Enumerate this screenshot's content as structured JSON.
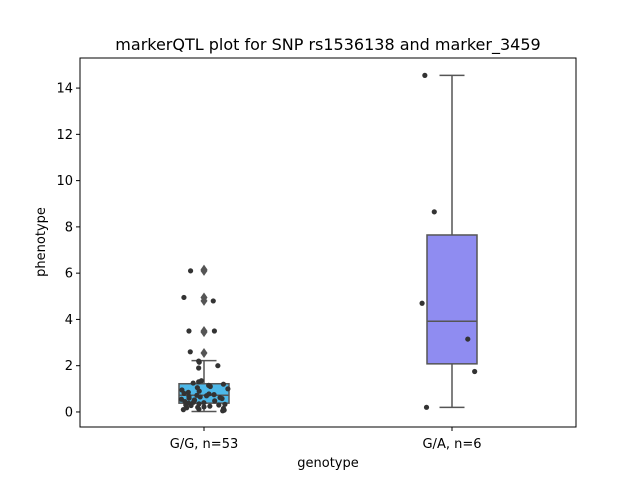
{
  "chart_data": {
    "type": "box",
    "title": "markerQTL plot for SNP rs1536138 and marker_3459",
    "xlabel": "genotype",
    "ylabel": "phenotype",
    "ylim": [
      -0.65,
      15.3
    ],
    "yticks": [
      0,
      2,
      4,
      6,
      8,
      10,
      12,
      14
    ],
    "categories": [
      "G/G, n=53",
      "G/A, n=6"
    ],
    "boxes": [
      {
        "category": "G/G, n=53",
        "color": "#4db8e8",
        "q1": 0.38,
        "median": 0.72,
        "q3": 1.22,
        "whisker_low": 0.02,
        "whisker_high": 2.22,
        "outliers": [
          2.55,
          3.5,
          3.45,
          4.8,
          4.95,
          6.1,
          6.15
        ],
        "points": [
          0.05,
          0.08,
          0.1,
          0.12,
          0.15,
          0.18,
          0.2,
          0.22,
          0.25,
          0.28,
          0.3,
          0.33,
          0.35,
          0.38,
          0.4,
          0.42,
          0.45,
          0.48,
          0.5,
          0.52,
          0.55,
          0.58,
          0.6,
          0.62,
          0.65,
          0.68,
          0.7,
          0.72,
          0.75,
          0.78,
          0.8,
          0.85,
          0.9,
          0.95,
          1.0,
          1.05,
          1.1,
          1.15,
          1.2,
          1.25,
          1.3,
          1.35,
          1.9,
          2.0,
          2.15,
          2.2,
          2.6,
          3.5,
          4.8,
          4.95,
          6.1,
          3.5,
          0.3
        ]
      },
      {
        "category": "G/A, n=6",
        "color": "#8f8cf1",
        "q1": 2.08,
        "median": 3.92,
        "q3": 7.65,
        "whisker_low": 0.2,
        "whisker_high": 14.55,
        "outliers": [],
        "points": [
          0.2,
          1.75,
          3.15,
          4.7,
          8.65,
          14.55
        ]
      }
    ],
    "grid": false,
    "legend": "none"
  }
}
